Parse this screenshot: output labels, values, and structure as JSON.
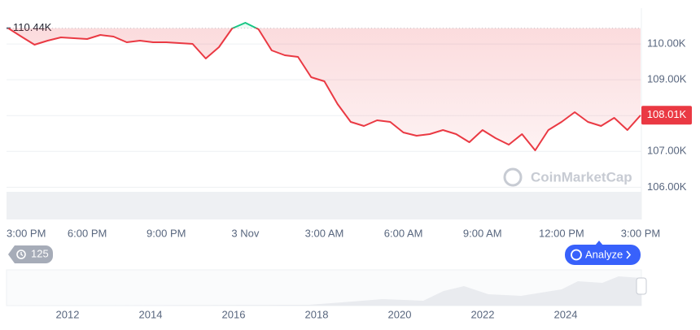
{
  "chart_data": {
    "type": "line",
    "x": [
      0,
      0.5,
      1,
      1.5,
      2,
      2.5,
      3,
      3.5,
      4,
      4.5,
      5,
      5.5,
      6,
      6.5,
      7,
      7.5,
      8,
      8.5,
      9,
      9.5,
      10,
      10.5,
      11,
      11.5,
      12,
      12.5,
      13,
      13.5,
      14,
      14.5,
      15,
      15.5,
      16,
      16.5,
      17,
      17.5,
      18,
      18.5,
      19,
      19.5,
      20,
      20.5,
      21,
      21.5,
      22,
      22.5,
      23,
      23.5,
      24
    ],
    "values": [
      110440,
      110206,
      109979,
      110093,
      110183,
      110160,
      110138,
      110251,
      110206,
      110047,
      110093,
      110047,
      110047,
      110024,
      110002,
      109593,
      109911,
      110433,
      110592,
      110410,
      109820,
      109684,
      109638,
      109071,
      108958,
      108322,
      107823,
      107710,
      107868,
      107823,
      107528,
      107437,
      107483,
      107596,
      107483,
      107256,
      107596,
      107369,
      107188,
      107483,
      107029,
      107596,
      107823,
      108096,
      107823,
      107710,
      107937,
      107596,
      108010
    ],
    "xlim": [
      0,
      24
    ],
    "xticks": [
      {
        "value": 0,
        "label": "3:00 PM"
      },
      {
        "value": 3,
        "label": "6:00 PM"
      },
      {
        "value": 6,
        "label": "9:00 PM"
      },
      {
        "value": 9,
        "label": "3 Nov"
      },
      {
        "value": 12,
        "label": "3:00 AM"
      },
      {
        "value": 15,
        "label": "6:00 AM"
      },
      {
        "value": 18,
        "label": "9:00 AM"
      },
      {
        "value": 21,
        "label": "12:00 PM"
      },
      {
        "value": 24,
        "label": "3:00 PM"
      }
    ],
    "ylim": [
      105100,
      111000
    ],
    "yticks": [
      {
        "value": 106000,
        "label": "106.00K"
      },
      {
        "value": 107000,
        "label": "107.00K"
      },
      {
        "value": 108000,
        "label": "108.00K"
      },
      {
        "value": 109000,
        "label": "109.00K"
      },
      {
        "value": 110000,
        "label": "110.00K"
      }
    ],
    "reference": {
      "value": 110440,
      "label": "110.44K"
    },
    "last_price": {
      "value": 108010,
      "label": "108.01K"
    },
    "colors": {
      "up": "#16c784",
      "down": "#ea3943"
    },
    "grid": true,
    "watermark": "CoinMarketCap"
  },
  "navigator": {
    "labels": [
      "2012",
      "2014",
      "2016",
      "2018",
      "2020",
      "2022",
      "2024"
    ]
  },
  "controls": {
    "history_badge": "125",
    "analyze_button": "Analyze"
  }
}
